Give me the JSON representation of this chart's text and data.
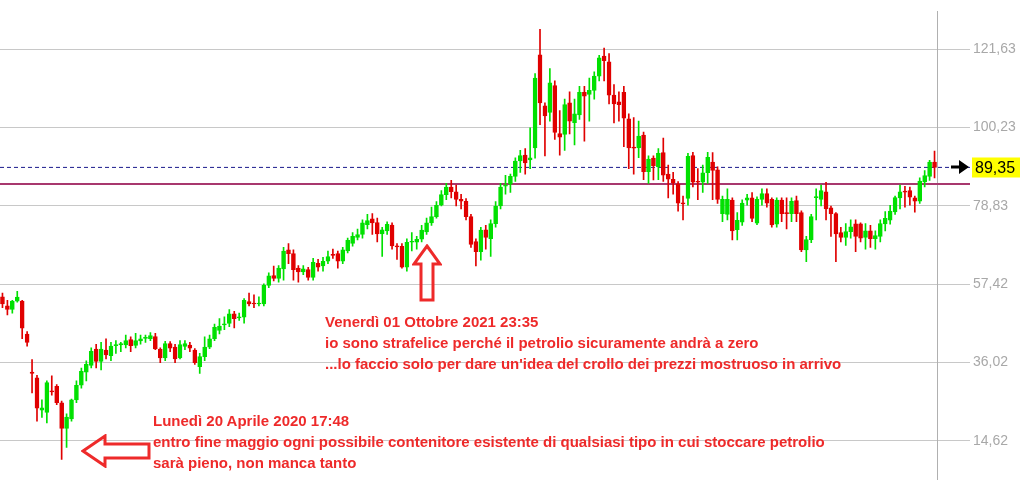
{
  "chart_data": {
    "type": "candlestick",
    "categories": [
      null,
      null,
      null,
      null,
      null,
      null,
      null,
      null,
      null,
      null,
      null,
      null,
      null,
      null,
      null,
      null,
      null,
      null,
      null,
      null,
      null,
      null,
      null,
      null,
      null,
      null,
      null,
      null,
      null,
      null,
      null,
      null,
      null,
      null,
      null,
      null,
      null,
      null,
      null,
      null,
      null,
      null,
      null,
      null,
      null,
      null,
      null,
      null,
      null,
      null,
      null,
      null,
      null,
      null,
      null,
      null,
      null,
      null,
      null,
      null,
      null,
      null,
      null,
      null,
      null,
      null,
      null,
      null,
      null,
      null,
      null,
      null,
      null,
      null,
      null,
      null,
      null,
      null,
      null,
      null,
      null,
      null,
      null,
      null,
      null,
      null,
      null,
      null,
      null,
      null,
      null,
      null,
      null,
      null,
      null,
      null,
      null,
      null,
      null,
      null,
      null,
      null,
      null,
      null,
      null,
      null,
      null,
      null,
      null,
      null,
      null,
      null,
      null,
      null,
      null,
      null,
      null,
      null,
      null,
      null,
      null,
      null,
      null,
      null,
      null,
      null,
      null,
      null,
      null,
      null,
      null,
      null,
      null,
      null,
      null,
      null,
      null,
      null,
      null,
      null,
      null,
      null,
      null,
      null,
      null,
      null,
      null,
      null,
      null,
      null,
      null,
      null,
      null,
      null,
      null,
      null,
      null,
      null,
      null,
      null,
      null,
      null,
      null,
      null,
      null,
      null,
      null,
      null,
      null,
      null,
      null,
      null,
      null,
      null,
      null,
      null,
      null,
      null,
      null,
      null,
      null,
      null,
      null,
      null,
      null,
      null,
      null,
      null,
      null,
      null
    ],
    "ohlc": [
      [
        54,
        55,
        51,
        52
      ],
      [
        51.5,
        53,
        49,
        50.5
      ],
      [
        50.5,
        53,
        49.5,
        52.8
      ],
      [
        52.8,
        55.5,
        52.5,
        53.9
      ],
      [
        52.8,
        53,
        42.5,
        45.4
      ],
      [
        43.8,
        44.5,
        40.5,
        41.5
      ],
      [
        33.4,
        36.8,
        27.7,
        33
      ],
      [
        31.8,
        32.5,
        20,
        23.5
      ],
      [
        23,
        25.8,
        21,
        23.6
      ],
      [
        22.4,
        31,
        19.5,
        30.5
      ],
      [
        28.3,
        32.4,
        27.1,
        28
      ],
      [
        29.5,
        30,
        24.5,
        25
      ],
      [
        25,
        25.5,
        9.5,
        18
      ],
      [
        18,
        22,
        12.8,
        21.1
      ],
      [
        20.6,
        26,
        20,
        25.8
      ],
      [
        25.8,
        31,
        25,
        29.8
      ],
      [
        29.8,
        34.5,
        29,
        33.6
      ],
      [
        33.4,
        36.5,
        31,
        35.5
      ],
      [
        35.2,
        40,
        34.5,
        39.1
      ],
      [
        39.7,
        41,
        34.5,
        36.3
      ],
      [
        36.3,
        41.5,
        34,
        39.7
      ],
      [
        39.4,
        42.5,
        37,
        38.1
      ],
      [
        37.9,
        41.5,
        36.5,
        40.5
      ],
      [
        40.6,
        42,
        38.5,
        40.9
      ],
      [
        40.8,
        41.5,
        39,
        41.2
      ],
      [
        40.8,
        43.5,
        40,
        42
      ],
      [
        42.3,
        43,
        39,
        40.6
      ],
      [
        40.7,
        44,
        40,
        42
      ],
      [
        41.9,
        43.5,
        41,
        42.5
      ],
      [
        42.6,
        43.5,
        41.5,
        42.8
      ],
      [
        42.5,
        44.2,
        42,
        43.4
      ],
      [
        43.1,
        44,
        39.5,
        39.7
      ],
      [
        39.7,
        40,
        36,
        37.3
      ],
      [
        37.3,
        41.8,
        36.5,
        41.2
      ],
      [
        41.2,
        41.7,
        39,
        39.9
      ],
      [
        40.2,
        41,
        36,
        37
      ],
      [
        37.3,
        42,
        37,
        40.9
      ],
      [
        40.4,
        42,
        39.5,
        41.2
      ],
      [
        40.8,
        41.5,
        39,
        39.9
      ],
      [
        39.4,
        39.8,
        35.5,
        36
      ],
      [
        34.9,
        38.5,
        33,
        37.6
      ],
      [
        37.6,
        43,
        36.5,
        40.2
      ],
      [
        40.2,
        43.5,
        39.8,
        42.5
      ],
      [
        42.5,
        46.5,
        42,
        45.6
      ],
      [
        44.8,
        48,
        43.8,
        46
      ],
      [
        46.3,
        48.5,
        45,
        46.6
      ],
      [
        46.7,
        50.5,
        45.8,
        49.3
      ],
      [
        49.3,
        50,
        45.5,
        48
      ],
      [
        48.2,
        49.5,
        47.5,
        48.4
      ],
      [
        48.4,
        53.5,
        46.8,
        53
      ],
      [
        52.7,
        55,
        51.5,
        52
      ],
      [
        52.2,
        54.5,
        51,
        52
      ],
      [
        52,
        54,
        51.5,
        52.2
      ],
      [
        52,
        57.5,
        51.5,
        57.1
      ],
      [
        57.1,
        60.5,
        56.5,
        59.7
      ],
      [
        59.8,
        62.4,
        58.3,
        59
      ],
      [
        59,
        62.5,
        58,
        61.8
      ],
      [
        61.6,
        67.5,
        58.5,
        66.5
      ],
      [
        66.8,
        68.5,
        63,
        65.8
      ],
      [
        65.8,
        66.8,
        58.5,
        61.4
      ],
      [
        61.8,
        62.5,
        58,
        60.8
      ],
      [
        60.8,
        62.5,
        60,
        61.6
      ],
      [
        61.4,
        62,
        58.5,
        59.3
      ],
      [
        59.3,
        64.5,
        58.5,
        63.4
      ],
      [
        63.1,
        64.2,
        61,
        62.1
      ],
      [
        62.4,
        64.8,
        61,
        63.7
      ],
      [
        63.7,
        66.5,
        63,
        65
      ],
      [
        65.6,
        67,
        64.5,
        65.3
      ],
      [
        65.8,
        66.5,
        61.8,
        63.7
      ],
      [
        63.7,
        67.5,
        63,
        66.8
      ],
      [
        66.5,
        70,
        66,
        69.4
      ],
      [
        68.6,
        71.5,
        67.8,
        70.5
      ],
      [
        70.2,
        72.5,
        69.5,
        71
      ],
      [
        71,
        75,
        70,
        74.2
      ],
      [
        73.7,
        76.5,
        72.5,
        74.8
      ],
      [
        75.3,
        76.7,
        71,
        74.2
      ],
      [
        74.3,
        75.5,
        69,
        71.2
      ],
      [
        71.2,
        73,
        65,
        72.3
      ],
      [
        72,
        74.5,
        71,
        73.8
      ],
      [
        73.6,
        74.2,
        67,
        67.9
      ],
      [
        67.9,
        68.5,
        64.2,
        67.6
      ],
      [
        67.8,
        68.5,
        61.8,
        62.1
      ],
      [
        62.1,
        69.8,
        61,
        68.9
      ],
      [
        68.9,
        71.5,
        66.5,
        69.1
      ],
      [
        68.9,
        70.5,
        67,
        69.7
      ],
      [
        69.7,
        73.5,
        69,
        72.2
      ],
      [
        71.7,
        75.5,
        71,
        74.2
      ],
      [
        74.2,
        78.5,
        73.5,
        75.9
      ],
      [
        75.9,
        80,
        75.5,
        79
      ],
      [
        79,
        83,
        78.8,
        81.9
      ],
      [
        81.9,
        85,
        80.5,
        84
      ],
      [
        84,
        85.8,
        81,
        82.7
      ],
      [
        82.7,
        84.5,
        78.8,
        80.6
      ],
      [
        80.6,
        82,
        78,
        80.1
      ],
      [
        80.1,
        80.8,
        75,
        75.9
      ],
      [
        75.9,
        76.5,
        67.5,
        68.3
      ],
      [
        69.1,
        69.8,
        62.4,
        66.3
      ],
      [
        66.3,
        73,
        64,
        72.2
      ],
      [
        72.3,
        73.5,
        67,
        70.2
      ],
      [
        69.9,
        75,
        65,
        74
      ],
      [
        74,
        80,
        73,
        78.8
      ],
      [
        78.8,
        85,
        78,
        84
      ],
      [
        84.2,
        87.2,
        82,
        84.5
      ],
      [
        84.8,
        87.5,
        82.5,
        86.9
      ],
      [
        86.9,
        92,
        85.5,
        91.1
      ],
      [
        91.1,
        94,
        88,
        92.6
      ],
      [
        92.7,
        94.5,
        87.5,
        90.6
      ],
      [
        91.4,
        100.2,
        89,
        92
      ],
      [
        94.7,
        115,
        91.9,
        113.8
      ],
      [
        120.1,
        127.1,
        101,
        107
      ],
      [
        106.2,
        107,
        92.5,
        103.4
      ],
      [
        104.4,
        116.4,
        102,
        112.5
      ],
      [
        111.7,
        113,
        97,
        98.9
      ],
      [
        98.6,
        104.9,
        92.7,
        97.6
      ],
      [
        98.4,
        108,
        94,
        106.5
      ],
      [
        107,
        110,
        98.5,
        102
      ],
      [
        101.6,
        108,
        95.5,
        104
      ],
      [
        103.7,
        111.5,
        102.5,
        109.9
      ],
      [
        109.9,
        111.5,
        96.5,
        108.8
      ],
      [
        109.3,
        113.8,
        102,
        110.4
      ],
      [
        110.4,
        115.5,
        108,
        114.3
      ],
      [
        114.3,
        120,
        113,
        119.3
      ],
      [
        119.8,
        122,
        113,
        118.5
      ],
      [
        118.2,
        120.5,
        106.7,
        109.1
      ],
      [
        109.1,
        112,
        101.5,
        106.7
      ],
      [
        107.3,
        110,
        102,
        106.5
      ],
      [
        109.9,
        111.5,
        95,
        102.8
      ],
      [
        102.6,
        104,
        89,
        94.7
      ],
      [
        94.9,
        103,
        87.5,
        94.6
      ],
      [
        94.7,
        102,
        92,
        97.9
      ],
      [
        98.2,
        99,
        86,
        88.2
      ],
      [
        88.2,
        92.5,
        85,
        91.6
      ],
      [
        91.9,
        92.5,
        85.9,
        89.8
      ],
      [
        89.5,
        94.5,
        86,
        93.2
      ],
      [
        93.4,
        97.4,
        85.5,
        87.2
      ],
      [
        87.5,
        90,
        81,
        86.1
      ],
      [
        86.1,
        88,
        82,
        85.1
      ],
      [
        84.8,
        85.5,
        77.4,
        79.6
      ],
      [
        79.6,
        81.5,
        75,
        79.4
      ],
      [
        80.9,
        93.2,
        79,
        92.4
      ],
      [
        92.6,
        93.5,
        84,
        85.3
      ],
      [
        85.5,
        89,
        80.5,
        85.3
      ],
      [
        85.3,
        90,
        82.5,
        87.9
      ],
      [
        87.9,
        93.5,
        85,
        92.1
      ],
      [
        90.8,
        93.4,
        80.5,
        88.5
      ],
      [
        88.7,
        89.5,
        79.5,
        80.6
      ],
      [
        76.7,
        81.5,
        74.5,
        80.6
      ],
      [
        76.5,
        83.5,
        75,
        80.6
      ],
      [
        80.4,
        81,
        69.5,
        72
      ],
      [
        72.3,
        77,
        69.5,
        74.9
      ],
      [
        74.4,
        80.5,
        73.5,
        79.6
      ],
      [
        80.4,
        82,
        79,
        81
      ],
      [
        81,
        82.5,
        74.5,
        75.4
      ],
      [
        74.1,
        81.3,
        73.7,
        80.6
      ],
      [
        80.6,
        83.5,
        79,
        82.2
      ],
      [
        82.2,
        83.5,
        78.5,
        79.6
      ],
      [
        80.6,
        81,
        73,
        73.6
      ],
      [
        73.8,
        81,
        73,
        80.4
      ],
      [
        80.4,
        81,
        74.5,
        76.7
      ],
      [
        76.9,
        81,
        72.5,
        76.7
      ],
      [
        76.7,
        81,
        74.5,
        80.1
      ],
      [
        80.3,
        81.5,
        74.5,
        76.7
      ],
      [
        77,
        77.5,
        66.3,
        66.8
      ],
      [
        66.8,
        70.5,
        63.6,
        69.6
      ],
      [
        69.6,
        76.5,
        68.8,
        75.9
      ],
      [
        81.1,
        83.5,
        75,
        81.3
      ],
      [
        80.6,
        84.5,
        78.8,
        83
      ],
      [
        82.7,
        85.3,
        75,
        78
      ],
      [
        78.3,
        78.8,
        70.5,
        76.7
      ],
      [
        76.7,
        77,
        63.6,
        71.2
      ],
      [
        71.5,
        73,
        69,
        70.2
      ],
      [
        70.2,
        74,
        68,
        71.8
      ],
      [
        71.8,
        75,
        70,
        73.1
      ],
      [
        73.9,
        75,
        66.3,
        70.5
      ],
      [
        73.9,
        74.2,
        69,
        70
      ],
      [
        70.2,
        74,
        67,
        72
      ],
      [
        72,
        73.5,
        67.5,
        69.9
      ],
      [
        69.9,
        72,
        67,
        70.7
      ],
      [
        70.5,
        75,
        69,
        74
      ],
      [
        73.9,
        77.3,
        72,
        75.4
      ],
      [
        74.9,
        79,
        73.8,
        77.4
      ],
      [
        77.2,
        81.5,
        76.5,
        81.1
      ],
      [
        81,
        84.5,
        78,
        82.7
      ],
      [
        82.9,
        84.2,
        78.5,
        82.6
      ],
      [
        83,
        84,
        79,
        81.2
      ],
      [
        81,
        81.5,
        77.1,
        80.1
      ],
      [
        80.1,
        86.5,
        79.5,
        85.6
      ],
      [
        85.4,
        88.5,
        84,
        87.1
      ],
      [
        86.9,
        91.3,
        85.8,
        90.8
      ],
      [
        90.8,
        93.8,
        86.5,
        89.35
      ]
    ],
    "colors": [
      "#e00000",
      "#e00000",
      "#00e000",
      "#00e000",
      "#e00000",
      "#e00000",
      "#e00000",
      "#e00000",
      "#00e000",
      "#00e000",
      "#e00000",
      "#e00000",
      "#e00000",
      "#00e000",
      "#00e000",
      "#00e000",
      "#00e000",
      "#00e000",
      "#00e000",
      "#e00000",
      "#00e000",
      "#e00000",
      "#00e000",
      "#00e000",
      "#00e000",
      "#00e000",
      "#e00000",
      "#00e000",
      "#00e000",
      "#00e000",
      "#00e000",
      "#e00000",
      "#e00000",
      "#00e000",
      "#e00000",
      "#e00000",
      "#00e000",
      "#00e000",
      "#e00000",
      "#e00000",
      "#00e000",
      "#00e000",
      "#00e000",
      "#00e000",
      "#00e000",
      "#00e000",
      "#00e000",
      "#e00000",
      "#00e000",
      "#00e000",
      "#e00000",
      "#e00000",
      "#00e000",
      "#00e000",
      "#00e000",
      "#e00000",
      "#00e000",
      "#00e000",
      "#e00000",
      "#e00000",
      "#e00000",
      "#00e000",
      "#e00000",
      "#00e000",
      "#e00000",
      "#00e000",
      "#00e000",
      "#e00000",
      "#e00000",
      "#00e000",
      "#00e000",
      "#00e000",
      "#00e000",
      "#00e000",
      "#00e000",
      "#e00000",
      "#e00000",
      "#00e000",
      "#00e000",
      "#e00000",
      "#e00000",
      "#e00000",
      "#00e000",
      "#00e000",
      "#00e000",
      "#00e000",
      "#00e000",
      "#00e000",
      "#00e000",
      "#00e000",
      "#00e000",
      "#e00000",
      "#e00000",
      "#e00000",
      "#e00000",
      "#e00000",
      "#e00000",
      "#00e000",
      "#e00000",
      "#00e000",
      "#00e000",
      "#00e000",
      "#00e000",
      "#00e000",
      "#00e000",
      "#00e000",
      "#e00000",
      "#00e000",
      "#00e000",
      "#e00000",
      "#e00000",
      "#00e000",
      "#e00000",
      "#e00000",
      "#00e000",
      "#e00000",
      "#00e000",
      "#00e000",
      "#e00000",
      "#00e000",
      "#00e000",
      "#00e000",
      "#e00000",
      "#e00000",
      "#e00000",
      "#e00000",
      "#e00000",
      "#e00000",
      "#e00000",
      "#00e000",
      "#e00000",
      "#00e000",
      "#e00000",
      "#00e000",
      "#e00000",
      "#e00000",
      "#e00000",
      "#e00000",
      "#e00000",
      "#00e000",
      "#e00000",
      "#e00000",
      "#00e000",
      "#00e000",
      "#e00000",
      "#e00000",
      "#00e000",
      "#00e000",
      "#e00000",
      "#00e000",
      "#00e000",
      "#00e000",
      "#e00000",
      "#00e000",
      "#00e000",
      "#e00000",
      "#e00000",
      "#00e000",
      "#e00000",
      "#e00000",
      "#00e000",
      "#e00000",
      "#e00000",
      "#00e000",
      "#00e000",
      "#00e000",
      "#00e000",
      "#e00000",
      "#e00000",
      "#e00000",
      "#e00000",
      "#00e000",
      "#00e000",
      "#e00000",
      "#e00000",
      "#00e000",
      "#e00000",
      "#00e000",
      "#00e000",
      "#00e000",
      "#00e000",
      "#00e000",
      "#00e000",
      "#e00000",
      "#e00000",
      "#e00000",
      "#00e000",
      "#00e000",
      "#00e000",
      "#e00000"
    ],
    "ylim": [
      4,
      132
    ],
    "yticks": [
      {
        "value": 14.62,
        "label": "14,62"
      },
      {
        "value": 36.02,
        "label": "36,02"
      },
      {
        "value": 57.42,
        "label": "57,42"
      },
      {
        "value": 78.83,
        "label": "78,83"
      },
      {
        "value": 100.23,
        "label": "100,23"
      },
      {
        "value": 121.63,
        "label": "121,63"
      }
    ],
    "ref_lines": [
      {
        "axis": "y",
        "value": 89.35,
        "label": "89,35",
        "color": "#1a1a8c",
        "line_style": "dashed"
      },
      {
        "axis": "y",
        "value": 84.8,
        "color": "#a8386e",
        "line_style": "solid"
      }
    ],
    "annotations": [
      "Venerdì 01 Ottobre 2021 23:35\nio sono strafelice perché il petrolio sicuramente andrà a zero\n...lo faccio solo per dare un'idea del crollo dei prezzi mostruoso in arrivo",
      "Lunedì 20 Aprile 2020 17:48\nentro fine maggio ogni possibile contenitore esistente di qualsiasi tipo in cui stoccare petrolio\nsarà pieno, non manca tanto"
    ],
    "grid": "y",
    "tick_labels": "y",
    "legend": false
  }
}
